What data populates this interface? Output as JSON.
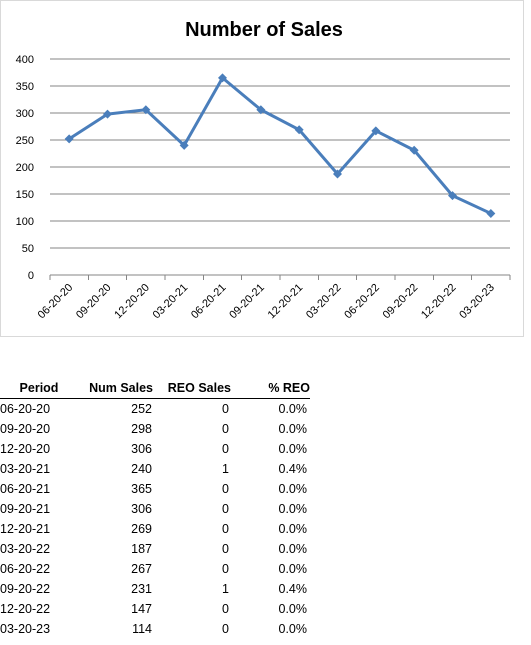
{
  "chart_data": {
    "type": "line",
    "title": "Number of Sales",
    "categories": [
      "06-20-20",
      "09-20-20",
      "12-20-20",
      "03-20-21",
      "06-20-21",
      "09-20-21",
      "12-20-21",
      "03-20-22",
      "06-20-22",
      "09-20-22",
      "12-20-22",
      "03-20-23"
    ],
    "series": [
      {
        "values": [
          252,
          298,
          306,
          240,
          365,
          306,
          269,
          187,
          267,
          231,
          147,
          114
        ]
      }
    ],
    "ylim": [
      0,
      400
    ],
    "yticks": [
      0,
      50,
      100,
      150,
      200,
      250,
      300,
      350,
      400
    ],
    "grid": true,
    "legend": "none",
    "line_color": "#4a7ebb"
  },
  "table": {
    "headers": [
      "Period",
      "Num Sales",
      "REO Sales",
      "% REO"
    ],
    "rows": [
      [
        "06-20-20",
        "252",
        "0",
        "0.0%"
      ],
      [
        "09-20-20",
        "298",
        "0",
        "0.0%"
      ],
      [
        "12-20-20",
        "306",
        "0",
        "0.0%"
      ],
      [
        "03-20-21",
        "240",
        "1",
        "0.4%"
      ],
      [
        "06-20-21",
        "365",
        "0",
        "0.0%"
      ],
      [
        "09-20-21",
        "306",
        "0",
        "0.0%"
      ],
      [
        "12-20-21",
        "269",
        "0",
        "0.0%"
      ],
      [
        "03-20-22",
        "187",
        "0",
        "0.0%"
      ],
      [
        "06-20-22",
        "267",
        "0",
        "0.0%"
      ],
      [
        "09-20-22",
        "231",
        "1",
        "0.4%"
      ],
      [
        "12-20-22",
        "147",
        "0",
        "0.0%"
      ],
      [
        "03-20-23",
        "114",
        "0",
        "0.0%"
      ]
    ]
  }
}
